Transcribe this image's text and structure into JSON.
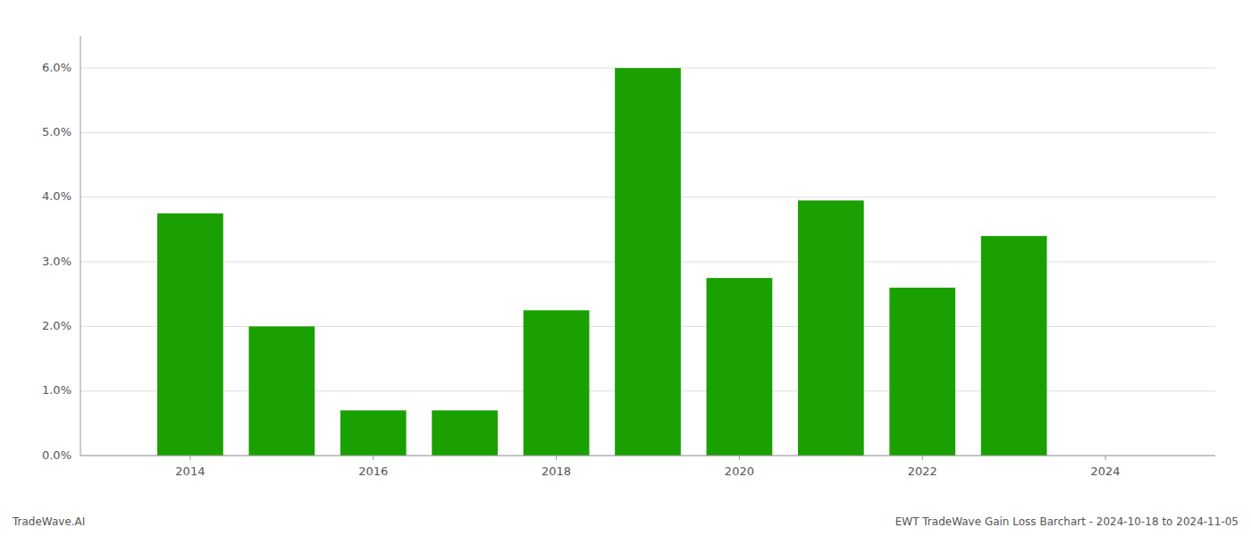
{
  "chart_data": {
    "type": "bar",
    "x": [
      2014,
      2015,
      2016,
      2017,
      2018,
      2019,
      2020,
      2021,
      2022,
      2023
    ],
    "values": [
      0.0375,
      0.02,
      0.007,
      0.007,
      0.0225,
      0.06,
      0.0275,
      0.0395,
      0.026,
      0.034
    ],
    "color": "#1aa000",
    "xlim": [
      2012.8,
      2025.2
    ],
    "xticks": [
      2014,
      2016,
      2018,
      2020,
      2022,
      2024
    ],
    "ylim": [
      0,
      0.065
    ],
    "yticks": [
      {
        "value": 0.0,
        "label": "0.0%"
      },
      {
        "value": 0.01,
        "label": "1.0%"
      },
      {
        "value": 0.02,
        "label": "2.0%"
      },
      {
        "value": 0.03,
        "label": "3.0%"
      },
      {
        "value": 0.04,
        "label": "4.0%"
      },
      {
        "value": 0.05,
        "label": "5.0%"
      },
      {
        "value": 0.06,
        "label": "6.0%"
      }
    ],
    "grid": true,
    "annotations": [
      "TradeWave.AI",
      "EWT TradeWave Gain Loss Barchart - 2024-10-18 to 2024-11-05"
    ]
  }
}
